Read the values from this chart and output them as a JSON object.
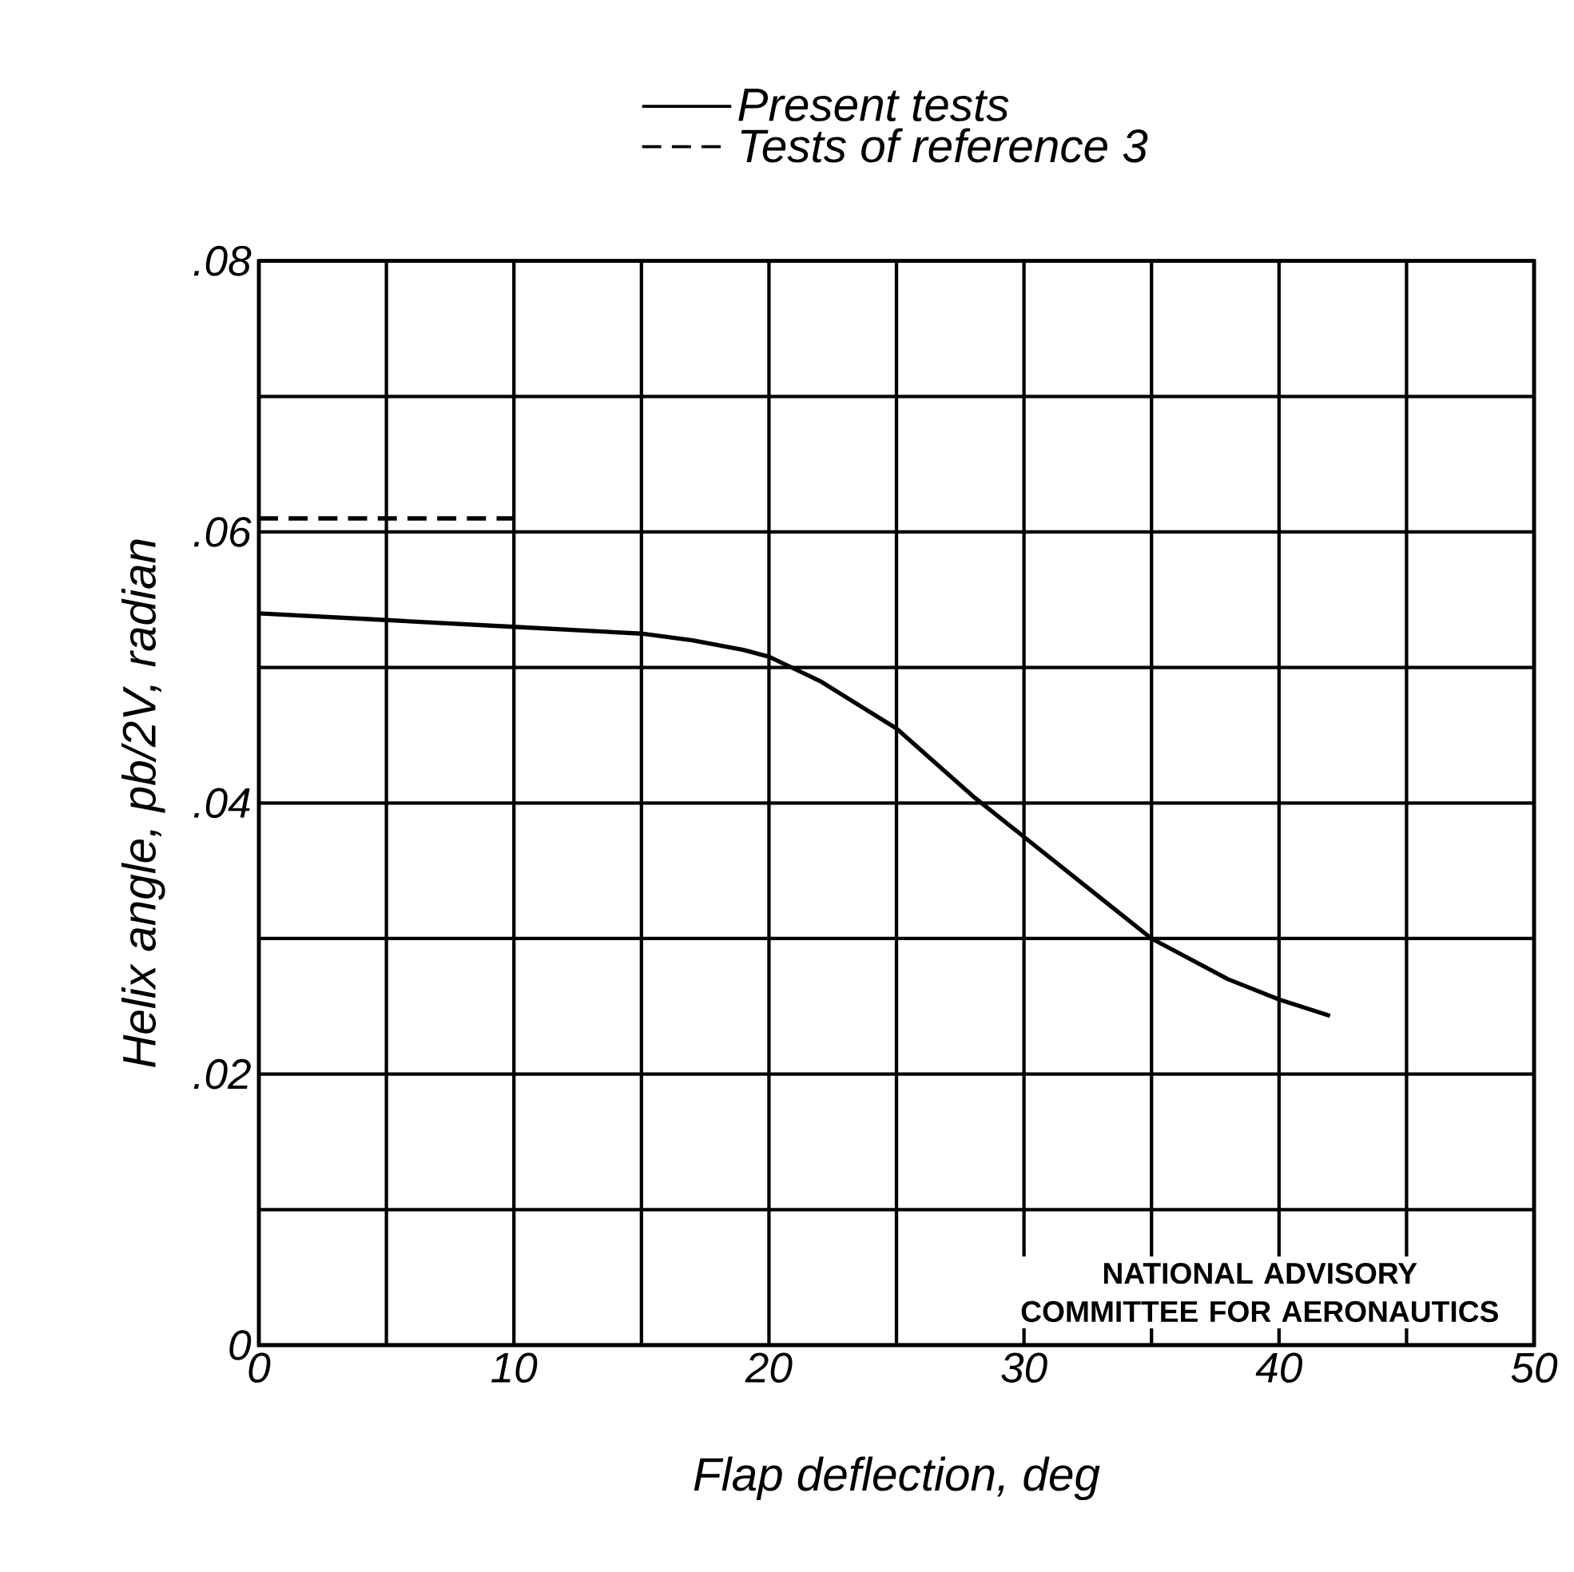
{
  "chart_data": {
    "type": "line",
    "xlabel": "Flap deflection, deg",
    "ylabel": "Helix angle, pb/2V, radian",
    "xlim": [
      0,
      50
    ],
    "ylim": [
      0,
      0.08
    ],
    "xticks": [
      0,
      {
        "value": 5,
        "label": null
      },
      10,
      {
        "value": 15,
        "label": null
      },
      20,
      {
        "value": 25,
        "label": null
      },
      30,
      {
        "value": 35,
        "label": null
      },
      40,
      {
        "value": 45,
        "label": null
      },
      50
    ],
    "yticks": [
      0,
      {
        "value": 0.01,
        "label": null
      },
      {
        "value": 0.02,
        "label": ".02"
      },
      {
        "value": 0.03,
        "label": null
      },
      {
        "value": 0.04,
        "label": ".04"
      },
      {
        "value": 0.05,
        "label": null
      },
      {
        "value": 0.06,
        "label": ".06"
      },
      {
        "value": 0.07,
        "label": null
      },
      {
        "value": 0.08,
        "label": ".08"
      }
    ],
    "grid": true,
    "legend": "top",
    "marker": "none",
    "series": [
      {
        "name": "Present tests",
        "color": "#000000",
        "line_style": "solid",
        "x": [
          0,
          5,
          10,
          15,
          17,
          19,
          20,
          22,
          25,
          28,
          30,
          33,
          35,
          38,
          40,
          42
        ],
        "values": [
          0.054,
          0.0535,
          0.053,
          0.0525,
          0.052,
          0.0513,
          0.0508,
          0.049,
          0.0455,
          0.0405,
          0.0375,
          0.033,
          0.03,
          0.027,
          0.0255,
          0.0243
        ]
      },
      {
        "name": "Tests of reference 3",
        "color": "#000000",
        "line_style": "dashed",
        "x": [
          0,
          10
        ],
        "values": [
          0.061,
          0.061
        ]
      }
    ],
    "annotations": [
      "NATIONAL ADVISORY COMMITTEE FOR AERONAUTICS"
    ]
  }
}
